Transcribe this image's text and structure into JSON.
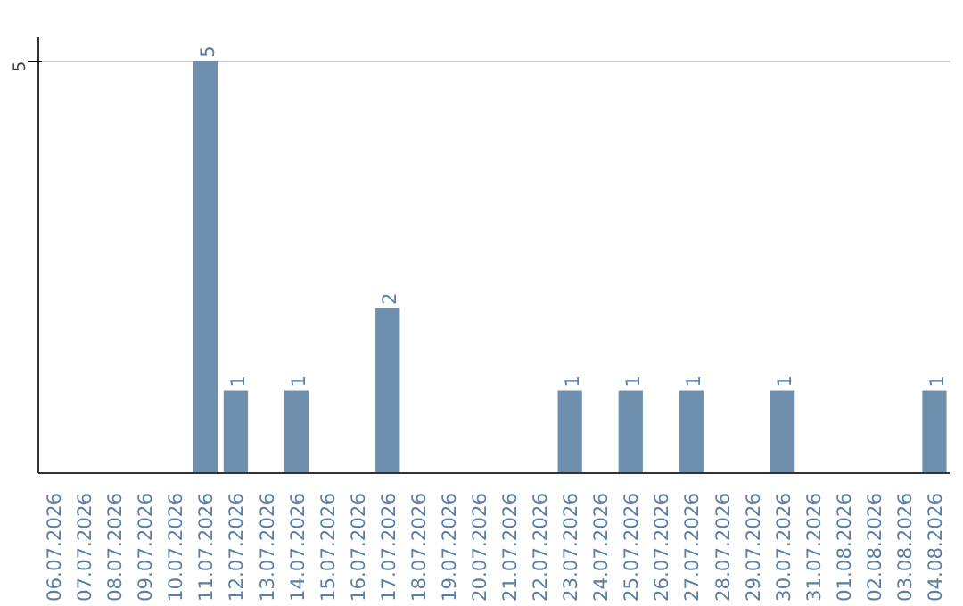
{
  "chart_data": {
    "type": "bar",
    "categories": [
      "06.07.2026",
      "07.07.2026",
      "08.07.2026",
      "09.07.2026",
      "10.07.2026",
      "11.07.2026",
      "12.07.2026",
      "13.07.2026",
      "14.07.2026",
      "15.07.2026",
      "16.07.2026",
      "17.07.2026",
      "18.07.2026",
      "19.07.2026",
      "20.07.2026",
      "21.07.2026",
      "22.07.2026",
      "23.07.2026",
      "24.07.2026",
      "25.07.2026",
      "26.07.2026",
      "27.07.2026",
      "28.07.2026",
      "29.07.2026",
      "30.07.2026",
      "31.07.2026",
      "01.08.2026",
      "02.08.2026",
      "03.08.2026",
      "04.08.2026"
    ],
    "values": [
      0,
      0,
      0,
      0,
      0,
      5,
      1,
      0,
      1,
      0,
      0,
      2,
      0,
      0,
      0,
      0,
      0,
      1,
      0,
      1,
      0,
      1,
      0,
      0,
      1,
      0,
      0,
      0,
      0,
      1
    ],
    "value_labels": [
      null,
      null,
      null,
      null,
      null,
      "5",
      "1",
      null,
      "1",
      null,
      null,
      "2",
      null,
      null,
      null,
      null,
      null,
      "1",
      null,
      "1",
      null,
      "1",
      null,
      null,
      "1",
      null,
      null,
      null,
      null,
      "1"
    ],
    "color": "#6e8fae",
    "ylim": [
      0,
      5.3
    ],
    "yticks": [
      5
    ],
    "grid": "y"
  }
}
